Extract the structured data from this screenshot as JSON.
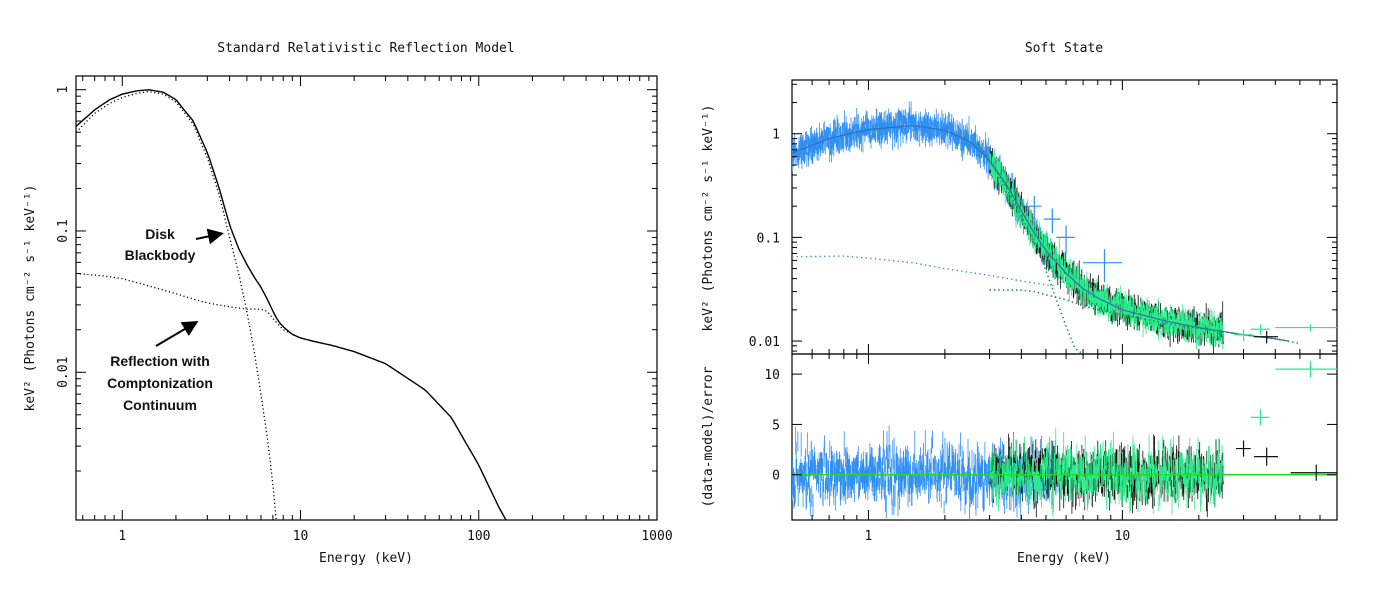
{
  "chart_data": [
    {
      "type": "line",
      "title": "Standard Relativistic Reflection Model",
      "xlabel": "Energy (keV)",
      "ylabel": "keV² (Photons cm⁻² s⁻¹ keV⁻¹)",
      "xscale": "log",
      "yscale": "log",
      "xlim": [
        0.55,
        1000
      ],
      "ylim": [
        0.0009,
        1.25
      ],
      "xticks": [
        {
          "v": 1,
          "label": "1"
        },
        {
          "v": 10,
          "label": "10"
        },
        {
          "v": 100,
          "label": "100"
        },
        {
          "v": 1000,
          "label": "1000"
        }
      ],
      "yticks": [
        {
          "v": 1,
          "label": "1"
        },
        {
          "v": 0.1,
          "label": "0.1"
        },
        {
          "v": 0.01,
          "label": "0.01"
        }
      ],
      "series": [
        {
          "style": "solid",
          "color": "#000000",
          "x": [
            0.55,
            0.7,
            0.85,
            1.0,
            1.2,
            1.4,
            1.7,
            2.0,
            2.5,
            3.0,
            3.5,
            4.0,
            4.5,
            5.0,
            5.5,
            6.0,
            6.5,
            7.0,
            7.5,
            8.0,
            9.0,
            10,
            12,
            15,
            20,
            30,
            50,
            70,
            100,
            130,
            150
          ],
          "y": [
            0.55,
            0.72,
            0.85,
            0.93,
            0.98,
            1.0,
            0.96,
            0.85,
            0.6,
            0.36,
            0.2,
            0.11,
            0.075,
            0.058,
            0.047,
            0.04,
            0.033,
            0.027,
            0.023,
            0.021,
            0.0185,
            0.0175,
            0.0165,
            0.0155,
            0.014,
            0.0115,
            0.0075,
            0.0048,
            0.0022,
            0.0011,
            0.0008
          ]
        },
        {
          "style": "dotted",
          "color": "#000000",
          "name": "Disk Blackbody",
          "x": [
            0.55,
            0.7,
            0.85,
            1.0,
            1.2,
            1.4,
            1.7,
            2.0,
            2.5,
            3.0,
            3.5,
            4.0,
            4.5,
            5.0,
            5.5,
            6.0,
            6.5,
            7.0,
            7.3
          ],
          "y": [
            0.5,
            0.68,
            0.8,
            0.88,
            0.94,
            0.97,
            0.93,
            0.82,
            0.57,
            0.33,
            0.18,
            0.09,
            0.05,
            0.027,
            0.014,
            0.007,
            0.0035,
            0.0016,
            0.0009
          ]
        },
        {
          "style": "dotted",
          "color": "#000000",
          "name": "Reflection with Comptonization Continuum",
          "x": [
            0.55,
            0.8,
            1.0,
            1.3,
            1.6,
            2.0,
            2.5,
            3.0,
            4.0,
            5.0,
            6.0,
            6.5,
            7.0,
            8.0,
            10
          ],
          "y": [
            0.05,
            0.048,
            0.046,
            0.042,
            0.039,
            0.036,
            0.033,
            0.031,
            0.029,
            0.028,
            0.028,
            0.027,
            0.024,
            0.02,
            0.0175
          ]
        }
      ],
      "annotations": [
        {
          "lines": [
            "Disk",
            "Blackbody"
          ]
        },
        {
          "lines": [
            "Reflection with",
            "Comptonization",
            "Continuum"
          ]
        }
      ]
    },
    {
      "type": "scatter",
      "title": "Soft State",
      "xlabel": "Energy (keV)",
      "ylabel_top": "keV² (Photons cm⁻² s⁻¹ keV⁻¹)",
      "ylabel_bottom": "(data-model)/error",
      "xscale": "log",
      "xlim": [
        0.5,
        70
      ],
      "top": {
        "yscale": "log",
        "ylim": [
          0.0075,
          3.3
        ],
        "yticks": [
          {
            "v": 1,
            "label": "1"
          },
          {
            "v": 0.1,
            "label": "0.1"
          },
          {
            "v": 0.01,
            "label": "0.01"
          }
        ]
      },
      "bottom": {
        "ylim": [
          -4.5,
          12
        ],
        "yticks": [
          {
            "v": 10,
            "label": "10"
          },
          {
            "v": 5,
            "label": "5"
          },
          {
            "v": 0,
            "label": "0"
          }
        ]
      },
      "xticks": [
        {
          "v": 1,
          "label": "1"
        },
        {
          "v": 10,
          "label": "10"
        }
      ],
      "colors": {
        "soft_data": "#2f8ff2",
        "hard_data": "#111111",
        "fpm_data": "#2bea8a",
        "model": "#1c8c5e",
        "zero_line": "#22dd22"
      },
      "model_total": {
        "x": [
          0.5,
          0.7,
          1.0,
          1.5,
          2.0,
          2.5,
          3.0,
          3.5,
          4.0,
          4.5,
          5.0,
          6.0,
          7.0,
          8.0,
          10,
          15,
          20,
          30,
          40,
          45
        ],
        "y": [
          0.65,
          0.9,
          1.1,
          1.2,
          1.08,
          0.85,
          0.55,
          0.32,
          0.18,
          0.11,
          0.075,
          0.045,
          0.032,
          0.026,
          0.02,
          0.0155,
          0.0135,
          0.0115,
          0.0105,
          0.01
        ]
      },
      "model_disk": {
        "x": [
          2.7,
          3.0,
          3.5,
          4.0,
          4.5,
          5.0,
          5.5,
          6.0,
          6.5,
          7.0
        ],
        "y": [
          0.8,
          0.55,
          0.3,
          0.16,
          0.09,
          0.048,
          0.025,
          0.014,
          0.0085,
          0.0075
        ]
      },
      "model_refl_soft": {
        "x": [
          0.5,
          0.8,
          1.0,
          1.5,
          2.0,
          3.0,
          4.0,
          5.0,
          5.5
        ],
        "y": [
          0.065,
          0.066,
          0.063,
          0.057,
          0.05,
          0.043,
          0.038,
          0.035,
          0.034
        ]
      },
      "model_refl_hard": {
        "x": [
          3.0,
          3.5,
          4.0,
          4.5,
          5.0,
          6.0,
          7.0,
          8.0,
          10,
          15,
          20,
          30,
          40,
          50
        ],
        "y": [
          0.031,
          0.031,
          0.031,
          0.03,
          0.028,
          0.025,
          0.022,
          0.02,
          0.018,
          0.0148,
          0.0132,
          0.0115,
          0.0105,
          0.0095
        ]
      },
      "binned_points": [
        {
          "x": 4.5,
          "xerr": 0.3,
          "y": 0.2,
          "yerr": 0.05,
          "set": "soft"
        },
        {
          "x": 5.3,
          "xerr": 0.4,
          "y": 0.15,
          "yerr": 0.04,
          "set": "soft"
        },
        {
          "x": 6.0,
          "xerr": 0.5,
          "y": 0.1,
          "yerr": 0.03,
          "set": "soft"
        },
        {
          "x": 8.5,
          "xerr": 1.5,
          "y": 0.057,
          "yerr": 0.02,
          "set": "soft"
        },
        {
          "x": 30,
          "xerr": 2.5,
          "y": 0.0115,
          "yerr": 0.0015,
          "set": "fpm"
        },
        {
          "x": 35,
          "xerr": 3,
          "y": 0.013,
          "yerr": 0.0015,
          "set": "fpm"
        },
        {
          "x": 55,
          "xerr": 15,
          "y": 0.0135,
          "yerr": 0.001,
          "set": "fpm"
        },
        {
          "x": 37,
          "xerr": 4,
          "y": 0.011,
          "yerr": 0.0015,
          "set": "hard"
        }
      ],
      "residual_points": [
        {
          "x": 30,
          "xerr": 2,
          "y": 2.6,
          "yerr": 0.8,
          "set": "hard"
        },
        {
          "x": 35,
          "xerr": 3,
          "y": 5.7,
          "yerr": 0.8,
          "set": "fpm"
        },
        {
          "x": 37,
          "xerr": 4,
          "y": 1.8,
          "yerr": 0.9,
          "set": "hard"
        },
        {
          "x": 58,
          "xerr": 12,
          "y": 0.2,
          "yerr": 0.8,
          "set": "hard"
        },
        {
          "x": 55,
          "xerr": 15,
          "y": 10.5,
          "yerr": 0.8,
          "set": "fpm"
        }
      ]
    }
  ]
}
